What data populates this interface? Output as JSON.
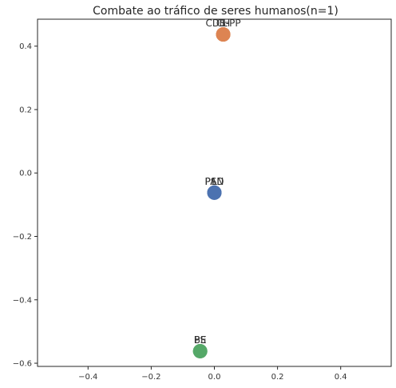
{
  "chart_data": {
    "type": "scatter",
    "title": "Combate ao tráfico de seres humanos(n=1)",
    "xlabel": "",
    "ylabel": "",
    "xlim": [
      -0.56,
      0.56
    ],
    "ylim": [
      -0.61,
      0.485
    ],
    "x_ticks": [
      -0.4,
      -0.2,
      0.0,
      0.2,
      0.4
    ],
    "x_tick_labels": [
      "−0.4",
      "−0.2",
      "0.0",
      "0.2",
      "0.4"
    ],
    "y_ticks": [
      -0.6,
      -0.4,
      -0.2,
      0.0,
      0.2,
      0.4
    ],
    "y_tick_labels": [
      "−0.6",
      "−0.4",
      "−0.2",
      "0.0",
      "0.2",
      "0.4"
    ],
    "grid": false,
    "points": [
      {
        "x": 0.0,
        "y": -0.062,
        "color": "#4c72b0",
        "label": "PSD"
      },
      {
        "x": 0.0,
        "y": -0.062,
        "color": "#4c72b0",
        "label": "PAN"
      },
      {
        "x": 0.0,
        "y": -0.062,
        "color": "#4c72b0",
        "label": "L"
      },
      {
        "x": 0.028,
        "y": 0.437,
        "color": "#dd8452",
        "label": "CH"
      },
      {
        "x": 0.028,
        "y": 0.437,
        "color": "#dd8452",
        "label": "IL"
      },
      {
        "x": 0.028,
        "y": 0.437,
        "color": "#dd8452",
        "label": "CDS-PP"
      },
      {
        "x": -0.045,
        "y": -0.562,
        "color": "#55a868",
        "label": "PS"
      },
      {
        "x": -0.045,
        "y": -0.562,
        "color": "#55a868",
        "label": "BE"
      }
    ]
  }
}
